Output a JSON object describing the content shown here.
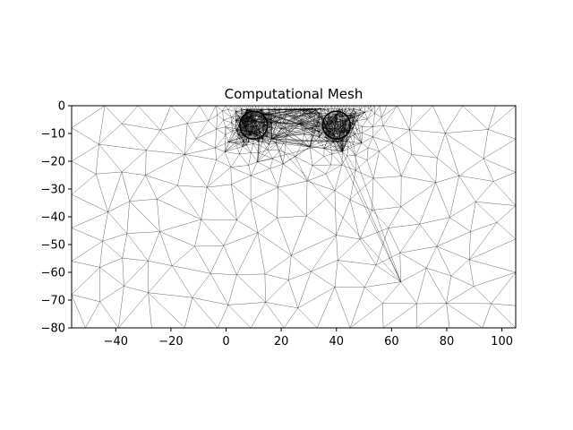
{
  "chart_data": {
    "type": "mesh",
    "title": "Computational Mesh",
    "xlim": [
      -56,
      105
    ],
    "ylim": [
      -80,
      0
    ],
    "xticks": [
      -40,
      -20,
      0,
      20,
      40,
      60,
      80,
      100
    ],
    "yticks": [
      0,
      -10,
      -20,
      -30,
      -40,
      -50,
      -60,
      -70,
      -80
    ],
    "circles": [
      {
        "cx": 10,
        "cy": -7,
        "r": 5
      },
      {
        "cx": 40,
        "cy": -7,
        "r": 5
      }
    ],
    "mesh": {
      "refinement": "dense near surface between x=0 and x=50, coarse at far field",
      "edge_color": "#000000"
    }
  },
  "labels": {
    "xticks": [
      "−40",
      "−20",
      "0",
      "20",
      "40",
      "60",
      "80",
      "100"
    ],
    "yticks": [
      "0",
      "−10",
      "−20",
      "−30",
      "−40",
      "−50",
      "−60",
      "−70",
      "−80"
    ]
  }
}
